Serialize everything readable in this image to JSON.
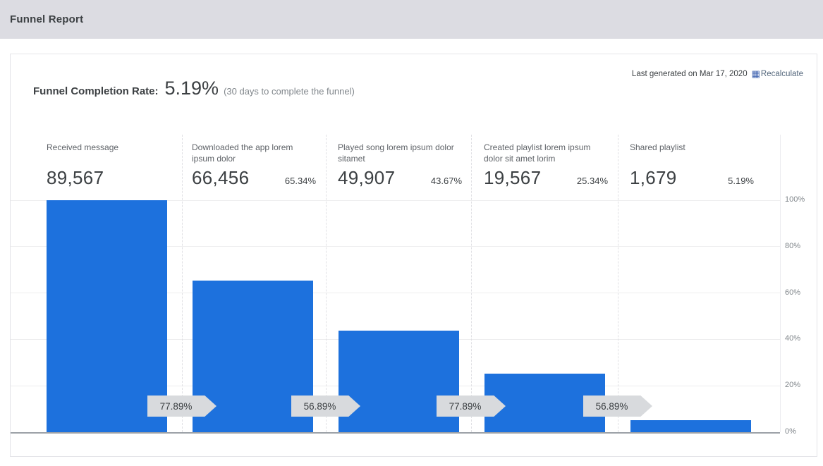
{
  "header": {
    "title": "Funnel Report"
  },
  "report": {
    "completion_label": "Funnel Completion Rate:",
    "completion_rate": "5.19%",
    "completion_note": "(30 days to complete the funnel)",
    "last_generated": "Last generated on Mar 17, 2020",
    "recalculate_icon_name": "calculator-grid-icon",
    "recalculate_icon_glyph": "▦",
    "recalculate_label": "Recalculate"
  },
  "colors": {
    "bar": "#1d71dd",
    "badge_bg": "#d8dadd",
    "topbar_bg": "#dcdce2",
    "recalculate_icon": "#3a5fae",
    "recalculate_text": "#53667b"
  },
  "chart_data": {
    "type": "bar",
    "title": "Funnel Report",
    "categories": [
      "Received message",
      "Downloaded the app lorem ipsum dolor",
      "Played song lorem ipsum dolor sitamet",
      "Created playlist lorem ipsum dolor sit amet lorim",
      "Shared playlist"
    ],
    "values": [
      100,
      65.34,
      43.67,
      25.34,
      5.19
    ],
    "counts": [
      "89,567",
      "66,456",
      "49,907",
      "19,567",
      "1,679"
    ],
    "conversion_labels": [
      "",
      "65.34%",
      "43.67%",
      "25.34%",
      "5.19%"
    ],
    "transition_labels": [
      "77.89%",
      "56.89%",
      "77.89%",
      "56.89%"
    ],
    "y_ticks": [
      {
        "value": 0,
        "label": "0%"
      },
      {
        "value": 20,
        "label": "20%"
      },
      {
        "value": 40,
        "label": "40%"
      },
      {
        "value": 60,
        "label": "60%"
      },
      {
        "value": 80,
        "label": "80%"
      },
      {
        "value": 100,
        "label": "100%"
      }
    ],
    "ylim": [
      0,
      100
    ],
    "grid": true,
    "legend": false,
    "y_axis_side": "right"
  }
}
